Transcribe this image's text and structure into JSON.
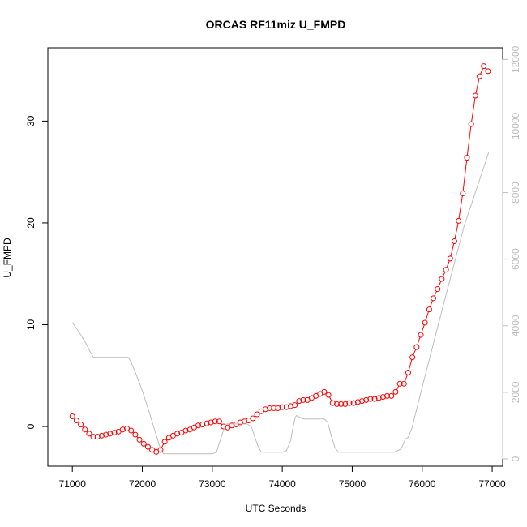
{
  "chart_data": {
    "type": "line",
    "title": "ORCAS RF11miz U_FMPD",
    "xlabel": "UTC Seconds",
    "ylabel": "U_FMPD",
    "y2label": "",
    "xlim": [
      70650,
      77150
    ],
    "ylim": [
      -3.9,
      37.2
    ],
    "y2lim": [
      -220,
      12350
    ],
    "x_ticks": [
      71000,
      72000,
      73000,
      74000,
      75000,
      76000,
      77000
    ],
    "y_ticks": [
      0,
      10,
      20,
      30
    ],
    "y2_ticks": [
      0,
      2000,
      4000,
      6000,
      8000,
      10000,
      12000
    ],
    "grid": false,
    "legend": "none",
    "series": [
      {
        "axis": "left",
        "color": "#ff0000",
        "style": "points-and-lines",
        "x": [
          71000,
          71060,
          71120,
          71180,
          71240,
          71300,
          71360,
          71420,
          71480,
          71540,
          71600,
          71660,
          71720,
          71780,
          71840,
          71900,
          71960,
          72020,
          72080,
          72140,
          72200,
          72260,
          72320,
          72380,
          72440,
          72500,
          72560,
          72620,
          72680,
          72740,
          72800,
          72860,
          72920,
          72980,
          73040,
          73100,
          73160,
          73220,
          73280,
          73340,
          73400,
          73460,
          73520,
          73580,
          73640,
          73700,
          73760,
          73820,
          73880,
          73940,
          74000,
          74060,
          74120,
          74180,
          74240,
          74300,
          74360,
          74420,
          74480,
          74540,
          74600,
          74660,
          74720,
          74780,
          74840,
          74900,
          74960,
          75020,
          75080,
          75140,
          75200,
          75260,
          75320,
          75380,
          75440,
          75500,
          75560,
          75620,
          75680,
          75740,
          75800,
          75860,
          75920,
          75980,
          76040,
          76100,
          76160,
          76220,
          76280,
          76340,
          76400,
          76460,
          76520,
          76580,
          76640,
          76700,
          76760,
          76820,
          76880,
          76940
        ],
        "y": [
          1.0,
          0.6,
          0.2,
          -0.3,
          -0.7,
          -1.0,
          -1.0,
          -0.9,
          -0.8,
          -0.7,
          -0.6,
          -0.5,
          -0.3,
          -0.2,
          -0.4,
          -0.8,
          -1.3,
          -1.7,
          -2.0,
          -2.3,
          -2.5,
          -2.3,
          -1.5,
          -1.1,
          -0.9,
          -0.7,
          -0.6,
          -0.4,
          -0.3,
          -0.1,
          0.1,
          0.2,
          0.3,
          0.4,
          0.5,
          0.5,
          0.0,
          -0.1,
          0.1,
          0.2,
          0.4,
          0.5,
          0.6,
          0.8,
          1.2,
          1.5,
          1.7,
          1.8,
          1.8,
          1.8,
          1.9,
          1.9,
          2.0,
          2.1,
          2.5,
          2.6,
          2.6,
          2.8,
          3.0,
          3.2,
          3.4,
          3.1,
          2.3,
          2.2,
          2.2,
          2.2,
          2.3,
          2.3,
          2.4,
          2.5,
          2.6,
          2.7,
          2.7,
          2.8,
          2.9,
          3.0,
          3.0,
          3.4,
          4.2,
          4.2,
          5.3,
          6.8,
          7.8,
          9.0,
          10.2,
          11.5,
          12.6,
          13.5,
          14.5,
          15.4,
          16.5,
          18.2,
          20.2,
          22.9,
          26.4,
          29.7,
          32.5,
          34.4,
          35.4,
          34.9
        ]
      },
      {
        "axis": "right",
        "color": "#bebebe",
        "style": "line",
        "x": [
          71000,
          71100,
          71200,
          71260,
          71300,
          71800,
          71840,
          71900,
          72000,
          72100,
          72200,
          72260,
          72300,
          73000,
          73060,
          73150,
          73200,
          73500,
          73560,
          73650,
          73700,
          74000,
          74060,
          74120,
          74150,
          74180,
          74200,
          74300,
          74600,
          74650,
          74700,
          74750,
          74800,
          75600,
          75700,
          75760,
          75800,
          75850,
          76000,
          76300,
          76600,
          76950
        ],
        "y": [
          4100,
          3800,
          3450,
          3200,
          3050,
          3050,
          2900,
          2600,
          2050,
          1400,
          700,
          300,
          150,
          150,
          200,
          800,
          1050,
          1050,
          950,
          400,
          200,
          200,
          250,
          550,
          900,
          1200,
          1300,
          1200,
          1200,
          1100,
          700,
          350,
          200,
          200,
          300,
          600,
          650,
          900,
          2150,
          4600,
          7000,
          9200
        ]
      }
    ]
  }
}
